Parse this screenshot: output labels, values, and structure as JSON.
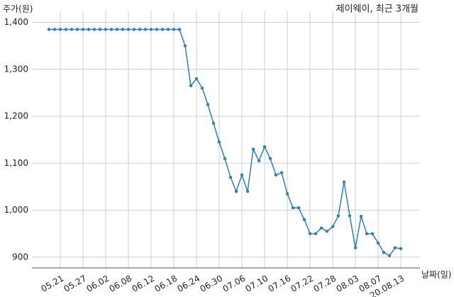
{
  "chart_data": {
    "type": "line",
    "title": "제이웨이, 최근 3개월",
    "y_label": "주가(원)",
    "x_label": "날짜(일)",
    "categories": [
      null,
      null,
      "05.21",
      null,
      null,
      null,
      "05.27",
      null,
      null,
      null,
      "06.02",
      null,
      null,
      null,
      "06.08",
      null,
      null,
      null,
      "06.12",
      null,
      null,
      null,
      "06.18",
      null,
      null,
      null,
      "06.24",
      null,
      null,
      null,
      "06.30",
      null,
      null,
      null,
      "07.06",
      null,
      null,
      null,
      "07.10",
      null,
      null,
      null,
      "07.16",
      null,
      null,
      null,
      "07.22",
      null,
      null,
      null,
      "07.28",
      null,
      null,
      null,
      "08.03",
      null,
      null,
      null,
      "08.07",
      null,
      null,
      null,
      "20.08.13"
    ],
    "values": [
      1385,
      1385,
      1385,
      1385,
      1385,
      1385,
      1385,
      1385,
      1385,
      1385,
      1385,
      1385,
      1385,
      1385,
      1385,
      1385,
      1385,
      1385,
      1385,
      1385,
      1385,
      1385,
      1385,
      1385,
      1350,
      1265,
      1280,
      1260,
      1225,
      1185,
      1145,
      1110,
      1070,
      1040,
      1075,
      1040,
      1130,
      1105,
      1135,
      1110,
      1075,
      1080,
      1035,
      1005,
      1005,
      980,
      950,
      950,
      962,
      955,
      965,
      988,
      1060,
      988,
      920,
      987,
      950,
      950,
      930,
      910,
      903,
      920,
      918
    ],
    "color": "#2e7fb5",
    "ylim": [
      877,
      1425
    ],
    "yticks": [
      {
        "value": 900,
        "label": "900"
      },
      {
        "value": 1000,
        "label": "1,000"
      },
      {
        "value": 1100,
        "label": "1,100"
      },
      {
        "value": 1200,
        "label": "1,200"
      },
      {
        "value": 1300,
        "label": "1,300"
      },
      {
        "value": 1400,
        "label": "1,400"
      }
    ],
    "grid": true
  }
}
